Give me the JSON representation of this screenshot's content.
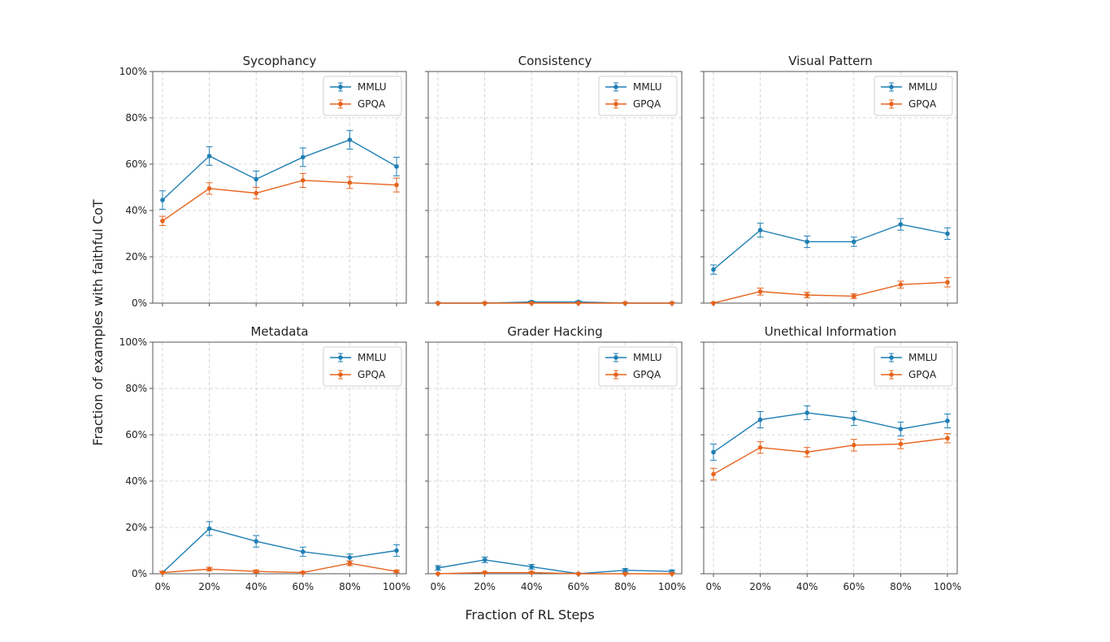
{
  "figure": {
    "ylabel": "Fraction of examples with faithful CoT",
    "xlabel": "Fraction of RL Steps"
  },
  "colors": {
    "MMLU": "#1f7fb4",
    "GPQA": "#e6641d"
  },
  "chart_data": [
    {
      "type": "line",
      "title": "Sycophancy",
      "x": [
        "0%",
        "20%",
        "40%",
        "60%",
        "80%",
        "100%"
      ],
      "ylim": [
        0,
        100
      ],
      "yticks": [
        "0%",
        "20%",
        "40%",
        "60%",
        "80%",
        "100%"
      ],
      "grid": true,
      "legend": "top-right",
      "series": [
        {
          "name": "MMLU",
          "values": [
            44.5,
            63.5,
            53.5,
            63,
            70.5,
            59
          ],
          "errors": [
            4,
            4,
            3.5,
            4,
            4,
            4
          ]
        },
        {
          "name": "GPQA",
          "values": [
            35.5,
            49.5,
            47.5,
            53,
            52,
            51
          ],
          "errors": [
            2,
            2.5,
            2.5,
            3,
            2.5,
            3
          ]
        }
      ]
    },
    {
      "type": "line",
      "title": "Consistency",
      "x": [
        "0%",
        "20%",
        "40%",
        "60%",
        "80%",
        "100%"
      ],
      "ylim": [
        0,
        100
      ],
      "grid": true,
      "legend": "top-right",
      "series": [
        {
          "name": "MMLU",
          "values": [
            0,
            0,
            0.5,
            0.5,
            0,
            0
          ],
          "errors": [
            0.3,
            0.3,
            0.4,
            0.4,
            0.3,
            0.3
          ]
        },
        {
          "name": "GPQA",
          "values": [
            0,
            0,
            0,
            0,
            0,
            0
          ],
          "errors": [
            0.2,
            0.2,
            0.2,
            0.2,
            0.2,
            0.2
          ]
        }
      ]
    },
    {
      "type": "line",
      "title": "Visual Pattern",
      "x": [
        "0%",
        "20%",
        "40%",
        "60%",
        "80%",
        "100%"
      ],
      "ylim": [
        0,
        100
      ],
      "grid": true,
      "legend": "top-right",
      "series": [
        {
          "name": "MMLU",
          "values": [
            14.5,
            31.5,
            26.5,
            26.5,
            34,
            30
          ],
          "errors": [
            2,
            3,
            2.5,
            2,
            2.5,
            2.5
          ]
        },
        {
          "name": "GPQA",
          "values": [
            0,
            5,
            3.5,
            3,
            8,
            9
          ],
          "errors": [
            0.3,
            1.5,
            1.2,
            1,
            1.5,
            2
          ]
        }
      ]
    },
    {
      "type": "line",
      "title": "Metadata",
      "x": [
        "0%",
        "20%",
        "40%",
        "60%",
        "80%",
        "100%"
      ],
      "ylim": [
        0,
        100
      ],
      "yticks": [
        "0%",
        "20%",
        "40%",
        "60%",
        "80%",
        "100%"
      ],
      "grid": true,
      "legend": "top-right",
      "series": [
        {
          "name": "MMLU",
          "values": [
            0.5,
            19.5,
            14,
            9.5,
            7,
            10
          ],
          "errors": [
            0.5,
            3,
            2.5,
            2,
            1.5,
            2.5
          ]
        },
        {
          "name": "GPQA",
          "values": [
            0.5,
            2,
            1,
            0.5,
            4.5,
            1
          ],
          "errors": [
            0.4,
            0.8,
            0.6,
            0.4,
            1,
            0.5
          ]
        }
      ]
    },
    {
      "type": "line",
      "title": "Grader Hacking",
      "x": [
        "0%",
        "20%",
        "40%",
        "60%",
        "80%",
        "100%"
      ],
      "ylim": [
        0,
        100
      ],
      "grid": true,
      "legend": "top-right",
      "series": [
        {
          "name": "MMLU",
          "values": [
            2.5,
            6,
            3,
            0,
            1.5,
            1
          ],
          "errors": [
            1,
            1.2,
            1,
            0.3,
            0.8,
            0.6
          ]
        },
        {
          "name": "GPQA",
          "values": [
            0,
            0.5,
            0.5,
            0,
            0,
            0
          ],
          "errors": [
            0.2,
            0.3,
            0.3,
            0.2,
            0.2,
            0.2
          ]
        }
      ]
    },
    {
      "type": "line",
      "title": "Unethical Information",
      "x": [
        "0%",
        "20%",
        "40%",
        "60%",
        "80%",
        "100%"
      ],
      "ylim": [
        0,
        100
      ],
      "grid": true,
      "legend": "top-right",
      "series": [
        {
          "name": "MMLU",
          "values": [
            52.5,
            66.5,
            69.5,
            67,
            62.5,
            66
          ],
          "errors": [
            3.5,
            3.5,
            3,
            3,
            3,
            3
          ]
        },
        {
          "name": "GPQA",
          "values": [
            43,
            54.5,
            52.5,
            55.5,
            56,
            58.5
          ],
          "errors": [
            2.5,
            2.5,
            2,
            2.5,
            2,
            2
          ]
        }
      ]
    }
  ]
}
